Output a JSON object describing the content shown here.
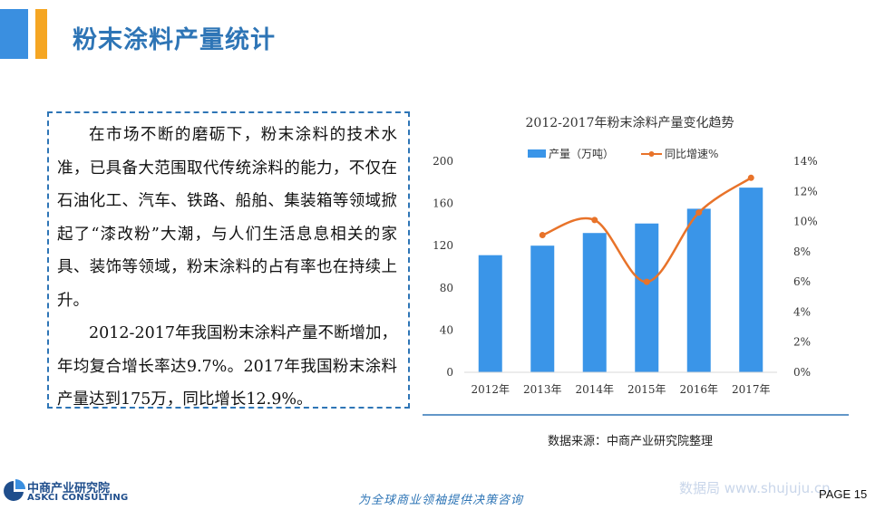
{
  "header": {
    "title": "粉末涂料产量统计",
    "accent_blue": "#3a8fe0",
    "accent_orange": "#f5a623",
    "title_color": "#2e75b6"
  },
  "text_box": {
    "paragraph1": "在市场不断的磨砺下，粉末涂料的技术水准，已具备大范围取代传统涂料的能力，不仅在石油化工、汽车、铁路、船舶、集装箱等领域掀起了“漆改粉”大潮，与人们生活息息相关的家具、装饰等领域，粉末涂料的占有率也在持续上升。",
    "paragraph2": "2012-2017年我国粉末涂料产量不断增加，年均复合增长率达9.7%。2017年我国粉末涂料产量达到175万，同比增长12.9%。",
    "border_color": "#2e75b6"
  },
  "chart_data": {
    "type": "bar",
    "title": "2012-2017年粉末涂料产量变化趋势",
    "categories": [
      "2012年",
      "2013年",
      "2014年",
      "2015年",
      "2016年",
      "2017年"
    ],
    "series": [
      {
        "name": "产量（万吨）",
        "type": "bar",
        "axis": "left",
        "color": "#3a95e8",
        "values": [
          111,
          120,
          132,
          141,
          155,
          175
        ]
      },
      {
        "name": "同比增速%",
        "type": "line",
        "axis": "right",
        "color": "#e8732a",
        "values": [
          null,
          9.1,
          10.1,
          6.0,
          10.6,
          12.9
        ]
      }
    ],
    "y_left": {
      "ylim": [
        0,
        200
      ],
      "ticks": [
        0,
        40,
        80,
        120,
        160,
        200
      ],
      "tick_labels": [
        "0",
        "40",
        "80",
        "120",
        "160",
        "200"
      ]
    },
    "y_right": {
      "ylim": [
        0,
        14
      ],
      "ticks": [
        0,
        2,
        4,
        6,
        8,
        10,
        12,
        14
      ],
      "tick_labels": [
        "0%",
        "2%",
        "4%",
        "6%",
        "8%",
        "10%",
        "12%",
        "14%"
      ]
    },
    "legend_position": "top",
    "grid": false
  },
  "source": "数据来源：中商产业研究院整理",
  "footer": {
    "logo_cn": "中商产业研究院",
    "logo_en": "ASKCI CONSULTING",
    "slogan": "为全球商业领袖提供决策咨询",
    "watermark": "数据局 www.shujuju.cn",
    "page": "PAGE  15"
  }
}
